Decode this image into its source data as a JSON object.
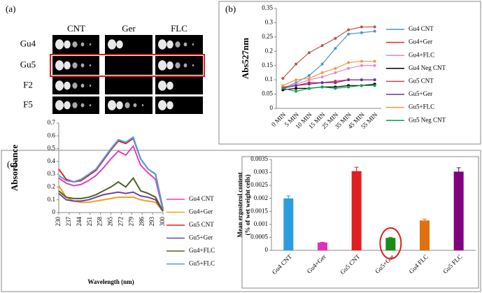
{
  "spot_assay": {
    "panel_label": "(a)",
    "columns": [
      "CNT",
      "Ger",
      "FLC"
    ],
    "rows": [
      "Gu4",
      "Gu5",
      "F2",
      "F5"
    ]
  },
  "chart_data": [
    {
      "type": "line",
      "panel_label": "(b)",
      "y_label": "Abs527nm",
      "legend": "right",
      "grid": false,
      "categories": [
        "0 MIN",
        "5 MIN",
        "10 MIN",
        "15 MIN",
        "25 MIN",
        "35 MIN",
        "45 MIN",
        "55 MIN"
      ],
      "ylim": [
        0,
        0.35
      ],
      "yticks": [
        0,
        0.05,
        0.1,
        0.15,
        0.2,
        0.25,
        0.3,
        0.35
      ],
      "series": [
        {
          "name": "Gu4 CNT",
          "color": "#4f94cd",
          "values": [
            0.07,
            0.09,
            0.115,
            0.155,
            0.21,
            0.26,
            0.265,
            0.27
          ]
        },
        {
          "name": "Gu4+Ger",
          "color": "#e8262a",
          "values": [
            0.075,
            0.08,
            0.09,
            0.09,
            0.095,
            0.1,
            0.1,
            0.1
          ]
        },
        {
          "name": "Gu4+FLC",
          "color": "#f080d0",
          "values": [
            0.07,
            0.085,
            0.1,
            0.11,
            0.125,
            0.14,
            0.15,
            0.15
          ]
        },
        {
          "name": "Gu4 Neg CNT",
          "color": "#000000",
          "values": [
            0.065,
            0.07,
            0.07,
            0.075,
            0.075,
            0.08,
            0.08,
            0.085
          ]
        },
        {
          "name": "Gu5 CNT",
          "color": "#c0504d",
          "values": [
            0.105,
            0.155,
            0.195,
            0.22,
            0.245,
            0.275,
            0.285,
            0.285
          ]
        },
        {
          "name": "Gu5+Ger",
          "color": "#7030a0",
          "values": [
            0.07,
            0.08,
            0.085,
            0.09,
            0.09,
            0.1,
            0.1,
            0.1
          ]
        },
        {
          "name": "Gu5+FLC",
          "color": "#f79646",
          "values": [
            0.08,
            0.1,
            0.105,
            0.125,
            0.14,
            0.16,
            0.165,
            0.165
          ]
        },
        {
          "name": "Gu5 Neg CNT",
          "color": "#00a550",
          "values": [
            0.07,
            0.06,
            0.07,
            0.075,
            0.07,
            0.075,
            0.08,
            0.08
          ]
        }
      ]
    },
    {
      "type": "xyline",
      "panel_label": "(c)",
      "x_label": "Wavelength (nm)",
      "y_label": "Absorbance",
      "legend": "right",
      "grid": false,
      "x": [
        230,
        235,
        240,
        245,
        250,
        255,
        260,
        265,
        270,
        275,
        280,
        285,
        290,
        295,
        300
      ],
      "xlim": [
        230,
        300
      ],
      "xticks": [
        230,
        237,
        244,
        251,
        258,
        265,
        272,
        279,
        286,
        293,
        300
      ],
      "ylim": [
        0,
        0.7
      ],
      "yticks": [
        0,
        0.1,
        0.2,
        0.3,
        0.4,
        0.5,
        0.6,
        0.7
      ],
      "series": [
        {
          "name": "Gu4 CNT",
          "color": "#e040c0",
          "values": [
            0.27,
            0.23,
            0.21,
            0.22,
            0.25,
            0.29,
            0.35,
            0.42,
            0.48,
            0.45,
            0.52,
            0.37,
            0.31,
            0.26,
            0.02
          ]
        },
        {
          "name": "Gu4+Ger",
          "color": "#f0a020",
          "values": [
            0.21,
            0.12,
            0.09,
            0.08,
            0.08,
            0.09,
            0.1,
            0.11,
            0.12,
            0.12,
            0.12,
            0.1,
            0.09,
            0.08,
            0.01
          ]
        },
        {
          "name": "Gu5 CNT",
          "color": "#e02020",
          "values": [
            0.34,
            0.26,
            0.24,
            0.25,
            0.29,
            0.33,
            0.41,
            0.49,
            0.56,
            0.54,
            0.58,
            0.42,
            0.34,
            0.3,
            0.03
          ]
        },
        {
          "name": "Gu5+Ger",
          "color": "#7040a0",
          "values": [
            0.15,
            0.1,
            0.09,
            0.09,
            0.1,
            0.12,
            0.14,
            0.15,
            0.16,
            0.15,
            0.16,
            0.13,
            0.12,
            0.1,
            0.01
          ]
        },
        {
          "name": "Gu4+FLC",
          "color": "#4f6228",
          "values": [
            0.17,
            0.12,
            0.11,
            0.11,
            0.12,
            0.14,
            0.17,
            0.2,
            0.24,
            0.2,
            0.27,
            0.17,
            0.15,
            0.12,
            0.01
          ]
        },
        {
          "name": "Gu5+FLC",
          "color": "#4aa0e0",
          "values": [
            0.29,
            0.25,
            0.24,
            0.26,
            0.3,
            0.34,
            0.42,
            0.5,
            0.57,
            0.55,
            0.59,
            0.42,
            0.34,
            0.3,
            0.03
          ]
        }
      ]
    },
    {
      "type": "bar",
      "y_label": [
        "Mean ergosterol content",
        "(% of wet weight cells)"
      ],
      "grid": false,
      "categories": [
        "Gu4 CNT",
        "Gu4+Ger",
        "Gu5 CNT",
        "Gu5+Ger",
        "Gu4 FLC",
        "Gu5 FLC"
      ],
      "values": [
        0.002,
        0.0003,
        0.00305,
        0.00048,
        0.00115,
        0.00303
      ],
      "errors": [
        0.0001,
        1e-05,
        0.00015,
        2e-05,
        5e-05,
        0.00015
      ],
      "colors": [
        "#2e9ce0",
        "#e030c0",
        "#e02020",
        "#1a8c1a",
        "#e07010",
        "#800080"
      ],
      "ylim": [
        0,
        0.0035
      ],
      "yticks": [
        0,
        0.0005,
        0.001,
        0.0015,
        0.002,
        0.0025,
        0.003,
        0.0035
      ]
    }
  ]
}
